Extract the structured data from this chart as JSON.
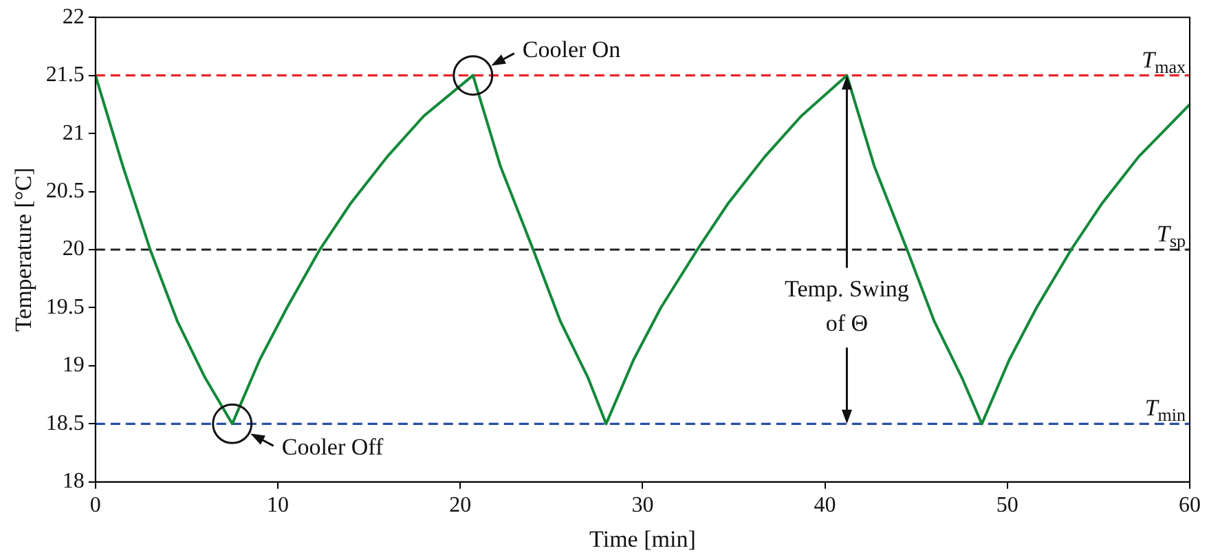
{
  "chart_data": {
    "type": "line",
    "xlabel": "Time [min]",
    "ylabel": "Temperature [°C]",
    "xlim": [
      0,
      60
    ],
    "xticks": [
      0,
      10,
      20,
      30,
      40,
      50,
      60
    ],
    "ylim": [
      18,
      22
    ],
    "yticks": [
      18,
      18.5,
      19,
      19.5,
      20,
      20.5,
      21,
      21.5,
      22
    ],
    "grid": false,
    "legend": false,
    "marker": "none",
    "line_style": "solid",
    "series": [
      {
        "color": "#13893a",
        "x": [
          0,
          1.5,
          3,
          4.5,
          6,
          7.5,
          9,
          10.5,
          12.3,
          14,
          16,
          18,
          20.7,
          22.2,
          24,
          25.5,
          27,
          28,
          29.5,
          31,
          33,
          34.7,
          36.7,
          38.7,
          41.2,
          42.7,
          44.5,
          46,
          47.5,
          48.6,
          50.1,
          51.6,
          53.5,
          55.2,
          57.2,
          60
        ],
        "values": [
          21.5,
          20.72,
          20.0,
          19.38,
          18.9,
          18.5,
          19.05,
          19.5,
          20.0,
          20.4,
          20.8,
          21.15,
          21.5,
          20.72,
          20.0,
          19.38,
          18.9,
          18.5,
          19.05,
          19.5,
          20.0,
          20.4,
          20.8,
          21.15,
          21.5,
          20.72,
          20.0,
          19.38,
          18.9,
          18.5,
          19.05,
          19.5,
          20.0,
          20.4,
          20.8,
          21.25
        ]
      }
    ],
    "ref_lines": [
      {
        "axis": "y",
        "value": 21.5,
        "label": "T$_{max}$",
        "color": "#e8262a",
        "line_style": "dashed"
      },
      {
        "axis": "y",
        "value": 20,
        "label": "T$_{sp}$",
        "color": "#222222",
        "line_style": "dashed"
      },
      {
        "axis": "y",
        "value": 18.5,
        "label": "T$_{min}$",
        "color": "#2a4ea8",
        "line_style": "dashed"
      }
    ],
    "annotations": [
      {
        "text": "Cooler On",
        "x": 20.7,
        "y": 21.5
      },
      {
        "text": "Cooler Off",
        "x": 7.5,
        "y": 18.5
      },
      {
        "text": "Temp. Swing of Θ",
        "x": 41.2,
        "y": 21.5
      }
    ]
  }
}
